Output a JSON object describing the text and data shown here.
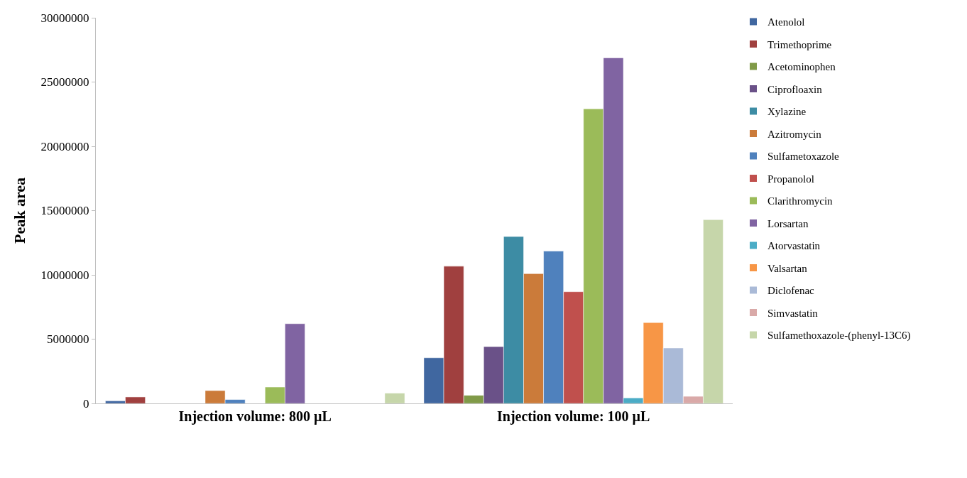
{
  "chart_data": {
    "type": "bar",
    "ylabel": "Peak area",
    "categories": [
      "Injection volume: 800 µL",
      "Injection volume: 100 µL"
    ],
    "ylim": [
      0,
      30000000
    ],
    "yticks": [
      0,
      5000000,
      10000000,
      15000000,
      20000000,
      25000000,
      30000000
    ],
    "legend": "right",
    "series": [
      {
        "name": "Atenolol",
        "color": "#4067a0",
        "values": [
          200000,
          3550000
        ]
      },
      {
        "name": "Trimethoprime",
        "color": "#a0403f",
        "values": [
          500000,
          10670000
        ]
      },
      {
        "name": "Acetominophen",
        "color": "#809a48",
        "values": [
          null,
          630000
        ]
      },
      {
        "name": "Ciprofloaxin",
        "color": "#6a5188",
        "values": [
          null,
          4420000
        ]
      },
      {
        "name": "Xylazine",
        "color": "#3d8ca4",
        "values": [
          null,
          12980000
        ]
      },
      {
        "name": "Azitromycin",
        "color": "#cb7b3a",
        "values": [
          1000000,
          10090000
        ]
      },
      {
        "name": "Sulfametoxazole",
        "color": "#4f81bd",
        "values": [
          300000,
          11850000
        ]
      },
      {
        "name": "Propanolol",
        "color": "#c0504d",
        "values": [
          null,
          8690000
        ]
      },
      {
        "name": "Clarithromycin",
        "color": "#9bbb59",
        "values": [
          1270000,
          22920000
        ]
      },
      {
        "name": "Lorsartan",
        "color": "#8064a2",
        "values": [
          6200000,
          26880000
        ]
      },
      {
        "name": "Atorvastatin",
        "color": "#4bacc6",
        "values": [
          null,
          430000
        ]
      },
      {
        "name": "Valsartan",
        "color": "#f79646",
        "values": [
          null,
          6290000
        ]
      },
      {
        "name": "Diclofenac",
        "color": "#aabad7",
        "values": [
          null,
          4310000
        ]
      },
      {
        "name": "Simvastatin",
        "color": "#d9a9a8",
        "values": [
          null,
          550000
        ]
      },
      {
        "name": "Sulfamethoxazole-(phenyl-13C6)",
        "color": "#c6d6aa",
        "values": [
          800000,
          14290000
        ]
      }
    ]
  }
}
